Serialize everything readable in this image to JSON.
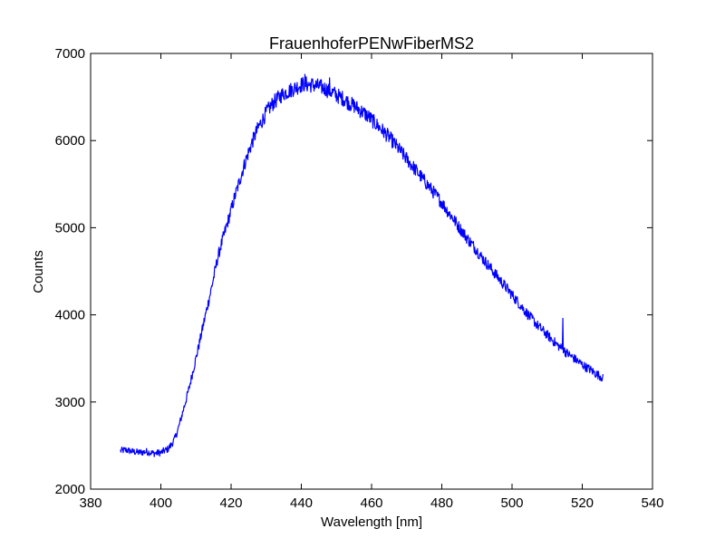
{
  "chart_data": {
    "type": "line",
    "title": "FrauenhoferPENwFiberMS2",
    "xlabel": "Wavelength [nm]",
    "ylabel": "Counts",
    "xlim": [
      380,
      540
    ],
    "ylim": [
      2000,
      7000
    ],
    "xticks": [
      380,
      400,
      420,
      440,
      460,
      480,
      500,
      520,
      540
    ],
    "yticks": [
      2000,
      3000,
      4000,
      5000,
      6000,
      7000
    ],
    "xtick_labels": [
      "380",
      "400",
      "420",
      "440",
      "460",
      "480",
      "500",
      "520",
      "540"
    ],
    "ytick_labels": [
      "2000",
      "3000",
      "4000",
      "5000",
      "6000",
      "7000"
    ],
    "grid": false,
    "line_color": "#0000ff",
    "series": [
      {
        "x": [
          388.5,
          390,
          392,
          394,
          396,
          398,
          400,
          402,
          403,
          404,
          405,
          406,
          407,
          408,
          409,
          410,
          411,
          412,
          413,
          414,
          415,
          416,
          417,
          418,
          419,
          420,
          421,
          422,
          423,
          424,
          425,
          426,
          427,
          428,
          429,
          430,
          431,
          432,
          433,
          434,
          435,
          436,
          437,
          438,
          439,
          440,
          441,
          442,
          443,
          444,
          445,
          446,
          447,
          448,
          449,
          450,
          451,
          452,
          453,
          454,
          455,
          456,
          457,
          458,
          459,
          460,
          461,
          462,
          463,
          464,
          465,
          466,
          467,
          468,
          469,
          470,
          471,
          472,
          473,
          474,
          475,
          476,
          477,
          478,
          479,
          480,
          481,
          482,
          483,
          484,
          485,
          486,
          487,
          488,
          489,
          490,
          491,
          492,
          493,
          494,
          495,
          496,
          497,
          498,
          499,
          500,
          501,
          502,
          503,
          504,
          505,
          506,
          507,
          508,
          509,
          510,
          511,
          512,
          513,
          514,
          515,
          516,
          517,
          518,
          519,
          520,
          521,
          522,
          523,
          524,
          525,
          526
        ],
        "y": [
          2440,
          2450,
          2430,
          2420,
          2430,
          2410,
          2420,
          2460,
          2510,
          2580,
          2700,
          2850,
          3000,
          3150,
          3330,
          3500,
          3680,
          3870,
          4050,
          4230,
          4420,
          4620,
          4780,
          4920,
          5060,
          5200,
          5350,
          5480,
          5620,
          5750,
          5870,
          5980,
          6080,
          6170,
          6240,
          6320,
          6380,
          6430,
          6470,
          6510,
          6540,
          6560,
          6580,
          6600,
          6620,
          6640,
          6650,
          6640,
          6640,
          6630,
          6620,
          6610,
          6590,
          6570,
          6550,
          6520,
          6500,
          6480,
          6450,
          6420,
          6400,
          6370,
          6340,
          6310,
          6280,
          6240,
          6200,
          6160,
          6120,
          6080,
          6040,
          5990,
          5940,
          5890,
          5840,
          5790,
          5740,
          5690,
          5640,
          5590,
          5540,
          5490,
          5440,
          5390,
          5340,
          5290,
          5230,
          5170,
          5120,
          5060,
          5000,
          4950,
          4890,
          4840,
          4790,
          4740,
          4680,
          4630,
          4580,
          4530,
          4480,
          4430,
          4380,
          4330,
          4280,
          4230,
          4180,
          4130,
          4080,
          4030,
          3980,
          3940,
          3890,
          3850,
          3810,
          3770,
          3730,
          3690,
          3650,
          3620,
          3580,
          3550,
          3520,
          3490,
          3460,
          3430,
          3400,
          3380,
          3350,
          3320,
          3300,
          3270
        ],
        "spikes": [
          [
            441,
            6760
          ],
          [
            448,
            6720
          ],
          [
            514.5,
            3960
          ],
          [
            515,
            3620
          ]
        ]
      }
    ]
  }
}
